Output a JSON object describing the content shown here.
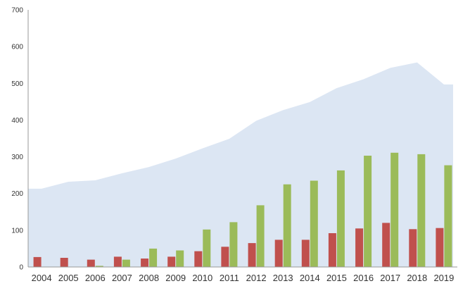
{
  "chart_data": {
    "type": "bar",
    "categories": [
      "2004",
      "2005",
      "2006",
      "2007",
      "2008",
      "2009",
      "2010",
      "2011",
      "2012",
      "2013",
      "2014",
      "2015",
      "2016",
      "2017",
      "2018",
      "2019"
    ],
    "series": [
      {
        "kind": "area",
        "color": "#dce6f3",
        "values": [
          213,
          232,
          236,
          255,
          272,
          295,
          323,
          349,
          398,
          427,
          449,
          487,
          511,
          542,
          557,
          497
        ]
      },
      {
        "kind": "bar",
        "color": "#c0504d",
        "values": [
          27,
          25,
          20,
          28,
          23,
          28,
          43,
          55,
          65,
          74,
          74,
          92,
          105,
          120,
          103,
          106
        ]
      },
      {
        "kind": "bar",
        "color": "#9bbb59",
        "values": [
          0,
          0,
          3,
          20,
          50,
          45,
          102,
          122,
          168,
          225,
          235,
          263,
          303,
          311,
          307,
          277
        ]
      }
    ],
    "title": "",
    "xlabel": "",
    "ylabel": "",
    "ylim": [
      0,
      700
    ],
    "yticks": [
      "0",
      "100",
      "200",
      "300",
      "400",
      "500",
      "600",
      "700"
    ],
    "grid": false,
    "legend": "none"
  }
}
